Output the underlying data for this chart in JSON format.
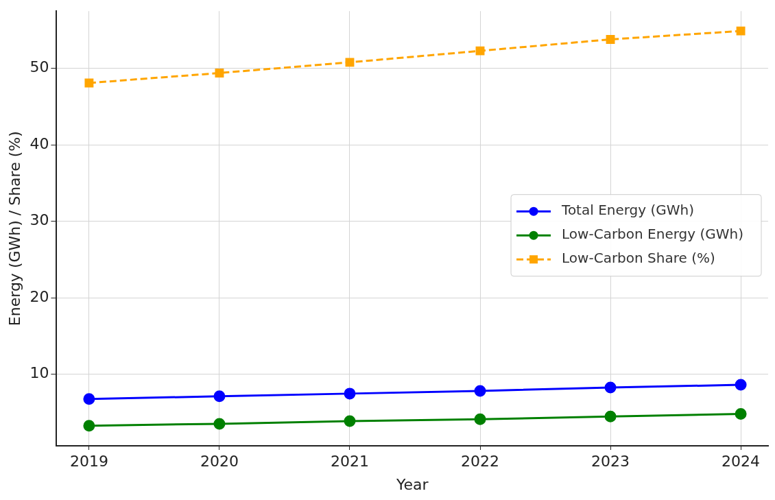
{
  "chart_data": {
    "type": "line",
    "xlabel": "Year",
    "ylabel": "Energy (GWh) / Share (%)",
    "x": [
      2019,
      2020,
      2021,
      2022,
      2023,
      2024
    ],
    "series": [
      {
        "name": "Total Energy (GWh)",
        "color": "#0000ff",
        "marker": "circle",
        "line_style": "solid",
        "values": [
          6.75,
          7.1,
          7.45,
          7.8,
          8.25,
          8.6
        ]
      },
      {
        "name": "Low-Carbon Energy (GWh)",
        "color": "#008000",
        "marker": "circle",
        "line_style": "solid",
        "values": [
          3.25,
          3.5,
          3.85,
          4.1,
          4.45,
          4.8
        ]
      },
      {
        "name": "Low-Carbon Share (%)",
        "color": "#ffa500",
        "marker": "square",
        "line_style": "dashed",
        "values": [
          48.1,
          49.4,
          50.8,
          52.3,
          53.8,
          54.9
        ]
      }
    ],
    "xlim": [
      2018.75,
      2024.21
    ],
    "xticks": [
      2019,
      2020,
      2021,
      2022,
      2023,
      2024
    ],
    "ylim": [
      0.6,
      57.5
    ],
    "yticks": [
      10,
      20,
      30,
      40,
      50
    ],
    "grid": true,
    "legend": "right"
  }
}
